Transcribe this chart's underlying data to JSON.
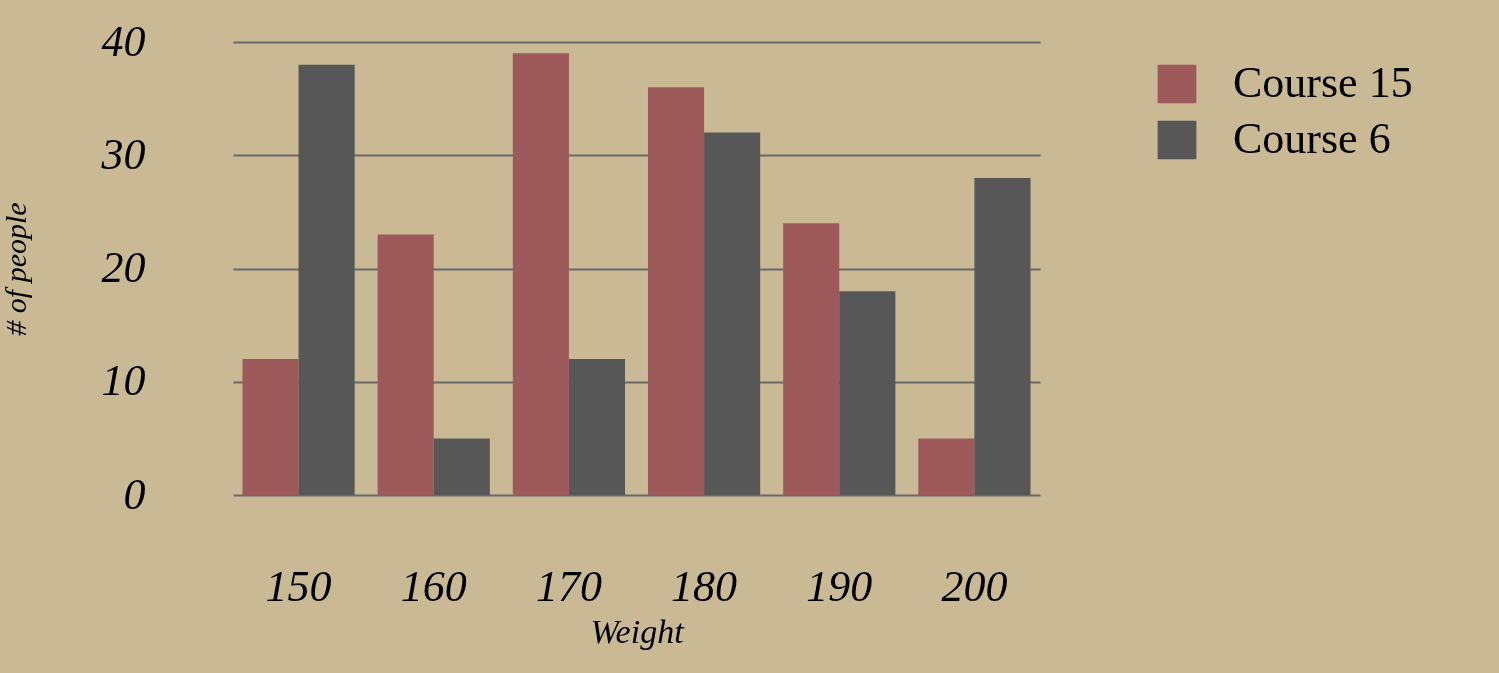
{
  "chart_data": {
    "type": "bar",
    "xlabel": "Weight",
    "ylabel": "# of people",
    "categories": [
      "150",
      "160",
      "170",
      "180",
      "190",
      "200"
    ],
    "series": [
      {
        "name": "Course 15",
        "color": "#9e5a5a",
        "values": [
          12,
          23,
          39,
          36,
          24,
          5
        ]
      },
      {
        "name": "Course 6",
        "color": "#575757",
        "values": [
          38,
          5,
          12,
          32,
          18,
          28
        ]
      }
    ],
    "ylim": [
      0,
      40
    ],
    "yticks": [
      0,
      10,
      20,
      30,
      40
    ],
    "grid": "y",
    "legend": "top right"
  }
}
